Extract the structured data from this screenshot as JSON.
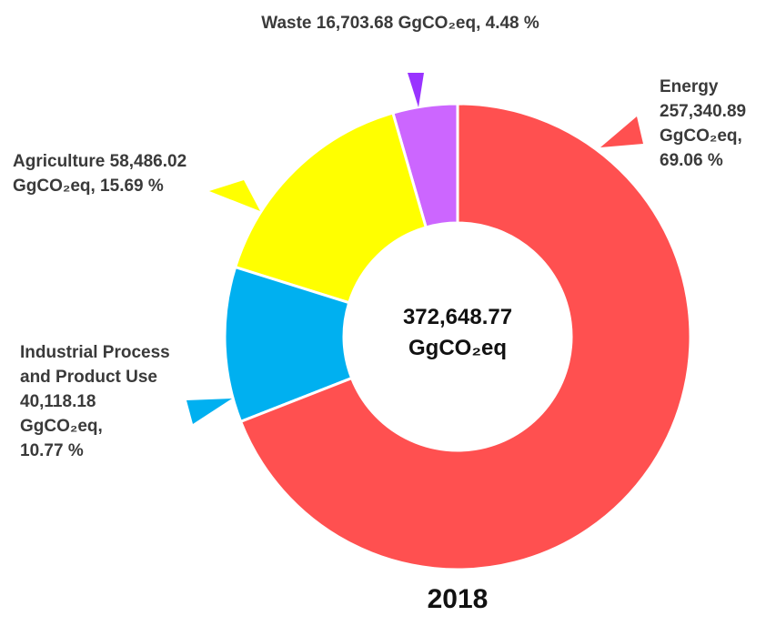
{
  "chart_data": {
    "type": "donut",
    "title": "2018",
    "center_label": "372,648.77 GgCO₂eq",
    "categories": [
      "Energy",
      "Industrial Process and Product Use",
      "Agriculture",
      "Waste"
    ],
    "values": [
      257340.89,
      40118.18,
      58486.02,
      16703.68
    ],
    "value_labels": [
      "257,340.89 GgCO₂eq, 69.06 %",
      "40,118.18 GgCO₂eq, 10.77 %",
      "58,486.02 GgCO₂eq, 15.69 %",
      "16,703.68 GgCO₂eq, 4.48 %"
    ],
    "colors": [
      "#ff5050",
      "#00b0f0",
      "#ffff00",
      "#cc66ff"
    ]
  }
}
